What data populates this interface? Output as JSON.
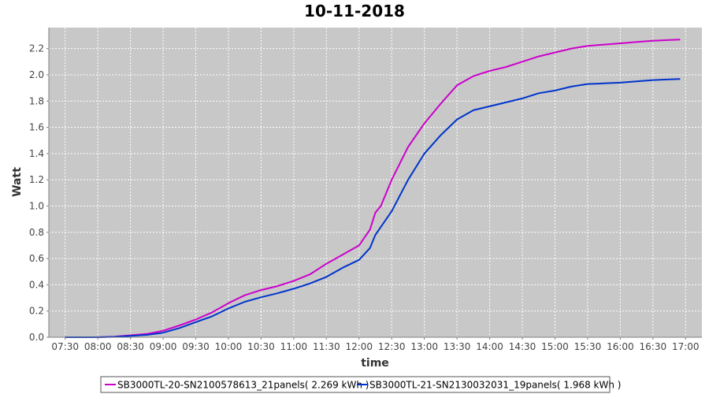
{
  "chart_data": {
    "type": "line",
    "title": "10-11-2018",
    "xlabel": "time",
    "ylabel": "Watt",
    "x_ticks": [
      "07:30",
      "08:00",
      "08:30",
      "09:00",
      "09:30",
      "10:00",
      "10:30",
      "11:00",
      "11:30",
      "12:00",
      "12:30",
      "13:00",
      "13:30",
      "14:00",
      "14:30",
      "15:00",
      "15:30",
      "16:00",
      "16:30",
      "17:00"
    ],
    "y_ticks": [
      "0.0",
      "0.2",
      "0.4",
      "0.6",
      "0.8",
      "1.0",
      "1.2",
      "1.4",
      "1.6",
      "1.8",
      "2.0",
      "2.2"
    ],
    "xlim": [
      "07:15",
      "17:15"
    ],
    "ylim": [
      0,
      2.36
    ],
    "grid": true,
    "legend_position": "bottom",
    "x": [
      "07:30",
      "07:45",
      "08:00",
      "08:15",
      "08:30",
      "08:45",
      "09:00",
      "09:15",
      "09:30",
      "09:45",
      "10:00",
      "10:15",
      "10:30",
      "10:45",
      "11:00",
      "11:15",
      "11:30",
      "11:45",
      "12:00",
      "12:10",
      "12:15",
      "12:20",
      "12:30",
      "12:45",
      "13:00",
      "13:15",
      "13:30",
      "13:45",
      "14:00",
      "14:15",
      "14:30",
      "14:45",
      "15:00",
      "15:15",
      "15:30",
      "15:45",
      "16:00",
      "16:15",
      "16:30",
      "16:45",
      "16:55"
    ],
    "series": [
      {
        "name": "SB3000TL-20-SN2100578613_21panels( 2.269 kWh )",
        "color": "#cc00cc",
        "values": [
          0.0,
          0.0,
          0.0,
          0.005,
          0.015,
          0.025,
          0.05,
          0.09,
          0.135,
          0.19,
          0.26,
          0.32,
          0.36,
          0.39,
          0.43,
          0.48,
          0.56,
          0.63,
          0.7,
          0.82,
          0.95,
          1.0,
          1.2,
          1.45,
          1.63,
          1.78,
          1.92,
          1.99,
          2.03,
          2.06,
          2.1,
          2.14,
          2.17,
          2.2,
          2.22,
          2.23,
          2.24,
          2.25,
          2.26,
          2.265,
          2.269
        ]
      },
      {
        "name": "SB3000TL-21-SN2130032031_19panels( 1.968 kWh )",
        "color": "#0033cc",
        "values": [
          0.0,
          0.0,
          0.0,
          0.003,
          0.01,
          0.018,
          0.035,
          0.07,
          0.115,
          0.16,
          0.22,
          0.27,
          0.305,
          0.335,
          0.37,
          0.41,
          0.46,
          0.53,
          0.59,
          0.68,
          0.78,
          0.84,
          0.96,
          1.2,
          1.4,
          1.54,
          1.66,
          1.73,
          1.76,
          1.79,
          1.82,
          1.86,
          1.88,
          1.91,
          1.93,
          1.935,
          1.94,
          1.95,
          1.96,
          1.965,
          1.968
        ]
      }
    ]
  }
}
